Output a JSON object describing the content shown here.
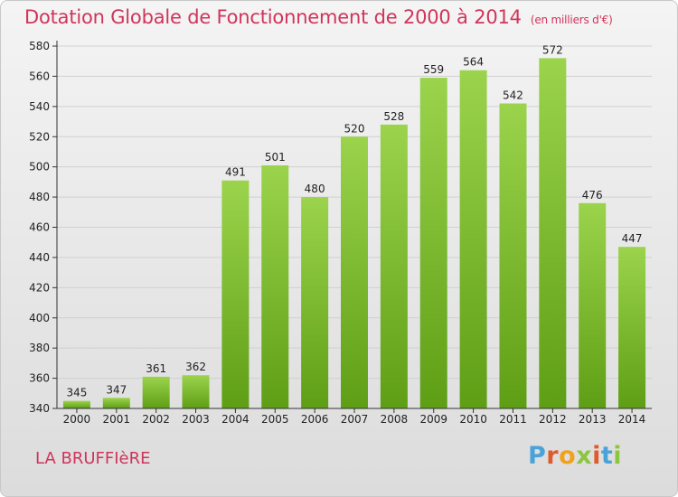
{
  "header": {
    "title": "Dotation Globale de Fonctionnement de 2000 à 2014",
    "unit": "(en milliers d'€)"
  },
  "footer": {
    "commune": "LA BRUFFIèRE",
    "logo_letters": [
      "P",
      "r",
      "o",
      "x",
      "i",
      "t",
      "i"
    ],
    "logo_colors": [
      "#4aa3d8",
      "#e05b2c",
      "#f2a21a",
      "#8cc63f",
      "#e05b2c",
      "#4aa3d8",
      "#8cc63f"
    ]
  },
  "colors": {
    "title": "#d0345a",
    "bar_top": "#9bd44c",
    "bar_bottom": "#5e9e15",
    "axis": "#333333",
    "grid": "#d0d0d0"
  },
  "chart_data": {
    "type": "bar",
    "title": "Dotation Globale de Fonctionnement de 2000 à 2014",
    "subtitle": "(en milliers d'€)",
    "xlabel": "",
    "ylabel": "",
    "categories": [
      "2000",
      "2001",
      "2002",
      "2003",
      "2004",
      "2005",
      "2006",
      "2007",
      "2008",
      "2009",
      "2010",
      "2011",
      "2012",
      "2013",
      "2014"
    ],
    "values": [
      345,
      347,
      361,
      362,
      491,
      501,
      480,
      520,
      528,
      559,
      564,
      542,
      572,
      476,
      447
    ],
    "ylim": [
      340,
      580
    ],
    "yticks": [
      340,
      360,
      380,
      400,
      420,
      440,
      460,
      480,
      500,
      520,
      540,
      560,
      580
    ],
    "grid": true,
    "legend": "none"
  }
}
